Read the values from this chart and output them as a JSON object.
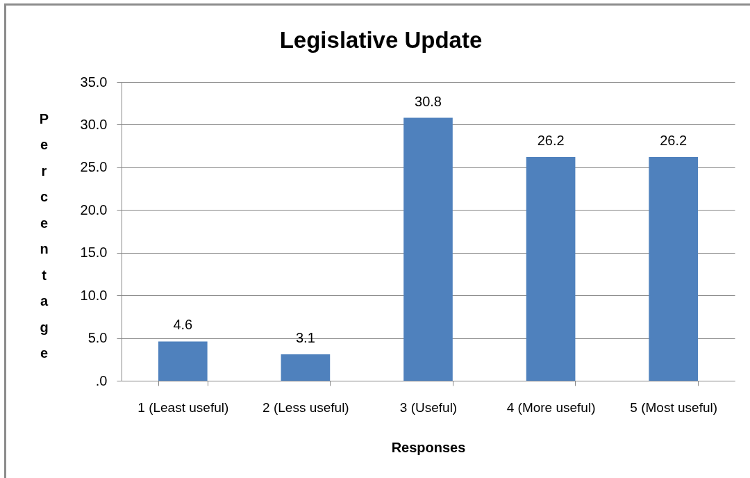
{
  "chart_data": {
    "type": "bar",
    "title": "Legislative Update",
    "xlabel": "Responses",
    "ylabel": "Percentage",
    "categories": [
      "1 (Least useful)",
      "2 (Less useful)",
      "3 (Useful)",
      "4 (More useful)",
      "5 (Most useful)"
    ],
    "values": [
      4.6,
      3.1,
      30.8,
      26.2,
      26.2
    ],
    "color": "#4f81bd",
    "ylim": [
      0,
      35
    ],
    "yticks": [
      {
        "value": 0,
        "label": ".0"
      },
      {
        "value": 5,
        "label": "5.0"
      },
      {
        "value": 10,
        "label": "10.0"
      },
      {
        "value": 15,
        "label": "15.0"
      },
      {
        "value": 20,
        "label": "20.0"
      },
      {
        "value": 25,
        "label": "25.0"
      },
      {
        "value": 30,
        "label": "30.0"
      },
      {
        "value": 35,
        "label": "35.0"
      }
    ],
    "grid": "y",
    "data_labels": true
  }
}
